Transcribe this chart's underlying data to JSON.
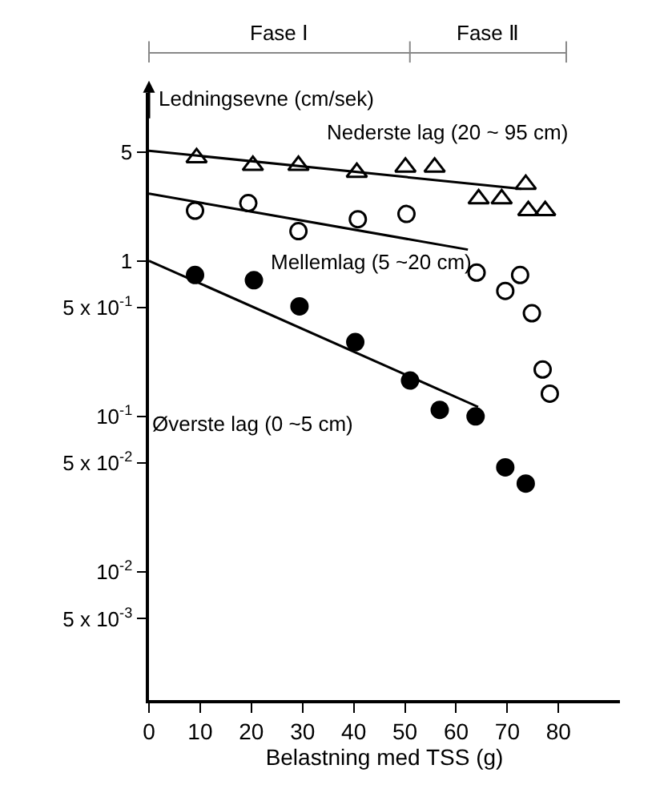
{
  "chart_data": {
    "type": "scatter",
    "xlabel": "Belastning med TSS (g)",
    "ylabel": "Ledningsevne (cm/sek)",
    "log": "y",
    "xlim": [
      0,
      92
    ],
    "xticks": [
      0,
      10,
      20,
      30,
      40,
      50,
      60,
      70,
      80
    ],
    "ylim": [
      0.0015,
      12
    ],
    "yticks": [
      {
        "value": 5,
        "label": "5"
      },
      {
        "value": 1,
        "label": "1"
      },
      {
        "value": 0.5,
        "label": "5 x 10$^{-1}$"
      },
      {
        "value": 0.1,
        "label": "10$^{-1}$"
      },
      {
        "value": 0.05,
        "label": "5 x 10$^{-2}$"
      },
      {
        "value": 0.01,
        "label": "10$^{-2}$"
      },
      {
        "value": 0.005,
        "label": "5 x 10$^{-3}$"
      }
    ],
    "series": [
      {
        "name": "Nederste lag (20 ~ 95 cm)",
        "color": "#000000",
        "marker": "triangle",
        "x": [
          9.3,
          20.3,
          29.2,
          40.6,
          50.1,
          55.8,
          64.4,
          68.9,
          73.6,
          74.1,
          77.4
        ],
        "values": [
          4.6,
          4.1,
          4.1,
          3.7,
          4.0,
          4.0,
          2.5,
          2.5,
          3.1,
          2.1,
          2.1
        ]
      },
      {
        "name": "Mellemlag (5 ~20 cm)",
        "color": "#000000",
        "marker": "circle",
        "x": [
          9.0,
          19.4,
          29.2,
          40.8,
          50.3,
          64.0,
          69.6,
          72.5,
          74.8,
          76.9,
          78.3
        ],
        "values": [
          2.1,
          2.35,
          1.55,
          1.85,
          2.0,
          0.84,
          0.64,
          0.81,
          0.46,
          0.2,
          0.14
        ]
      },
      {
        "name": "Øverste lag (0 ~5 cm)",
        "color": "#000000",
        "marker": "circle",
        "x": [
          9.0,
          20.5,
          29.4,
          40.3,
          51.0,
          56.8,
          63.8,
          69.6,
          73.6
        ],
        "values": [
          0.81,
          0.75,
          0.51,
          0.3,
          0.17,
          0.11,
          0.1,
          0.047,
          0.037
        ]
      },
      {
        "type": "line",
        "color": "#000000",
        "marker": "none",
        "x": [
          0,
          72.7
        ],
        "values": [
          5.1,
          2.9
        ]
      },
      {
        "type": "line",
        "color": "#000000",
        "marker": "none",
        "x": [
          0,
          62.3
        ],
        "values": [
          2.7,
          1.18
        ]
      },
      {
        "type": "line",
        "color": "#000000",
        "marker": "none",
        "x": [
          0,
          64.3
        ],
        "values": [
          1.0,
          0.115
        ]
      }
    ],
    "annotations": [
      "Fase Ⅰ",
      "Fase Ⅱ"
    ]
  }
}
